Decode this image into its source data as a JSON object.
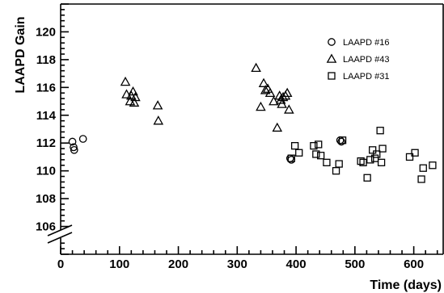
{
  "chart_data": {
    "type": "scatter",
    "xlabel": "Time (days)",
    "ylabel": "LAAPD Gain",
    "xlim": [
      0,
      650
    ],
    "ylim": [
      104,
      122
    ],
    "x_ticks": [
      0,
      100,
      200,
      300,
      400,
      500,
      600
    ],
    "y_ticks": [
      106,
      108,
      110,
      112,
      114,
      116,
      118,
      120
    ],
    "axis_break": "y-axis, bottom",
    "legend_position": "top-right",
    "series": [
      {
        "name": "LAAPD #16",
        "marker": "circle",
        "points": [
          [
            20,
            112.1
          ],
          [
            22,
            111.7
          ],
          [
            23,
            111.5
          ],
          [
            38,
            112.3
          ],
          [
            390,
            110.9
          ],
          [
            392,
            110.8
          ],
          [
            475,
            112.2
          ],
          [
            477,
            112.1
          ]
        ]
      },
      {
        "name": "LAAPD #43",
        "marker": "triangle",
        "points": [
          [
            110,
            116.4
          ],
          [
            112,
            115.5
          ],
          [
            118,
            115.0
          ],
          [
            120,
            115.4
          ],
          [
            123,
            115.7
          ],
          [
            125,
            114.9
          ],
          [
            127,
            115.3
          ],
          [
            165,
            114.7
          ],
          [
            166,
            113.6
          ],
          [
            332,
            117.4
          ],
          [
            340,
            114.6
          ],
          [
            345,
            116.3
          ],
          [
            348,
            115.8
          ],
          [
            352,
            115.9
          ],
          [
            356,
            115.6
          ],
          [
            362,
            115.0
          ],
          [
            368,
            113.1
          ],
          [
            372,
            115.4
          ],
          [
            374,
            115.1
          ],
          [
            376,
            114.8
          ],
          [
            378,
            115.3
          ],
          [
            382,
            115.4
          ],
          [
            385,
            115.6
          ],
          [
            388,
            114.4
          ]
        ]
      },
      {
        "name": "LAAPD #31",
        "marker": "square",
        "points": [
          [
            392,
            110.9
          ],
          [
            398,
            111.8
          ],
          [
            405,
            111.3
          ],
          [
            430,
            111.8
          ],
          [
            434,
            111.2
          ],
          [
            438,
            111.9
          ],
          [
            442,
            111.1
          ],
          [
            452,
            110.6
          ],
          [
            468,
            110.0
          ],
          [
            473,
            110.5
          ],
          [
            479,
            112.2
          ],
          [
            510,
            110.7
          ],
          [
            514,
            110.6
          ],
          [
            521,
            109.5
          ],
          [
            526,
            110.8
          ],
          [
            530,
            111.5
          ],
          [
            534,
            110.9
          ],
          [
            537,
            111.2
          ],
          [
            543,
            112.9
          ],
          [
            545,
            110.6
          ],
          [
            547,
            111.6
          ],
          [
            593,
            111.0
          ],
          [
            602,
            111.3
          ],
          [
            613,
            109.4
          ],
          [
            616,
            110.2
          ],
          [
            632,
            110.4
          ]
        ]
      }
    ]
  }
}
